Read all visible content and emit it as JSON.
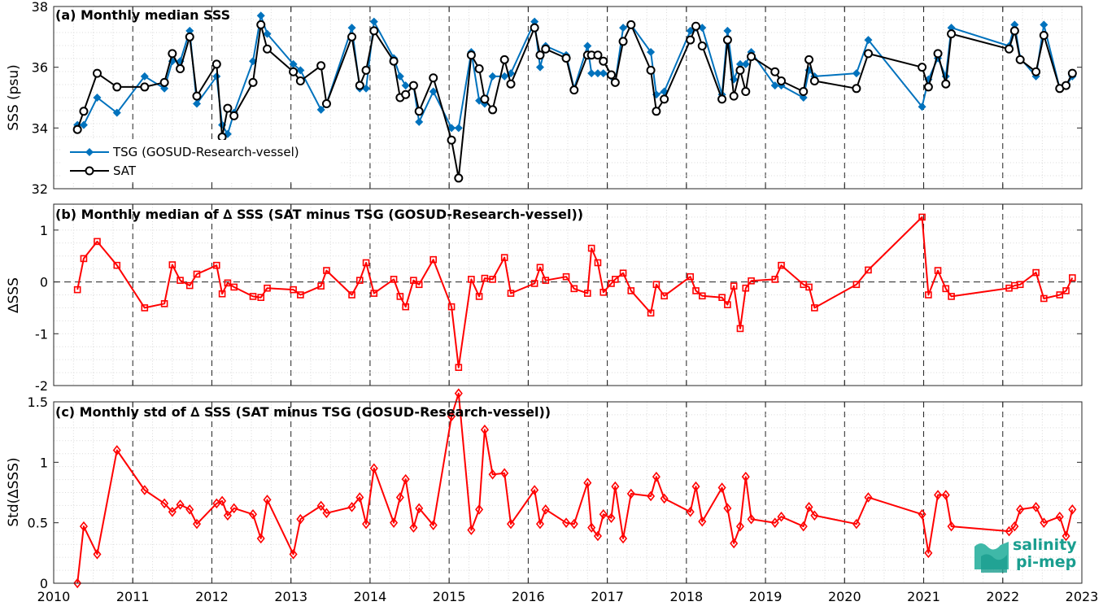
{
  "years": [
    "2010",
    "2011",
    "2012",
    "2013",
    "2014",
    "2015",
    "2016",
    "2017",
    "2018",
    "2019",
    "2020",
    "2021",
    "2022",
    "2023"
  ],
  "logo": {
    "line1": "salinity",
    "line2": "pi-mep",
    "color": "#1a9e8f"
  },
  "chart_data": [
    {
      "type": "line",
      "title": "(a) Monthly median SSS",
      "ylabel": "SSS (psu)",
      "xlim": [
        2010,
        2023
      ],
      "ylim": [
        32,
        38
      ],
      "yticks": [
        32,
        34,
        36,
        38
      ],
      "grid": true,
      "legend_position": "lower-left",
      "series": [
        {
          "name": "TSG (GOSUD-Research-vessel)",
          "color": "#0072BD",
          "marker": "diamond-filled",
          "x": [
            2010.3,
            2010.38,
            2010.55,
            2010.8,
            2011.15,
            2011.4,
            2011.5,
            2011.6,
            2011.72,
            2011.81,
            2012.06,
            2012.13,
            2012.2,
            2012.28,
            2012.52,
            2012.62,
            2012.7,
            2013.03,
            2013.12,
            2013.38,
            2013.45,
            2013.77,
            2013.87,
            2013.95,
            2014.05,
            2014.3,
            2014.38,
            2014.45,
            2014.55,
            2014.62,
            2014.8,
            2015.03,
            2015.12,
            2015.28,
            2015.38,
            2015.45,
            2015.55,
            2015.7,
            2015.78,
            2016.08,
            2016.15,
            2016.22,
            2016.48,
            2016.58,
            2016.75,
            2016.8,
            2016.88,
            2016.95,
            2017.05,
            2017.1,
            2017.2,
            2017.3,
            2017.55,
            2017.62,
            2017.72,
            2018.05,
            2018.12,
            2018.2,
            2018.45,
            2018.52,
            2018.6,
            2018.68,
            2018.75,
            2018.82,
            2019.12,
            2019.2,
            2019.48,
            2019.55,
            2019.62,
            2020.15,
            2020.3,
            2020.98,
            2021.06,
            2021.18,
            2021.28,
            2021.35,
            2022.08,
            2022.15,
            2022.22,
            2022.42,
            2022.52,
            2022.72,
            2022.8,
            2022.88
          ],
          "y": [
            34.1,
            34.1,
            35.0,
            34.5,
            35.7,
            35.3,
            36.2,
            36.2,
            37.2,
            34.8,
            35.7,
            34.1,
            33.8,
            34.5,
            36.2,
            37.7,
            37.1,
            36.1,
            35.9,
            34.6,
            34.8,
            37.3,
            35.3,
            35.3,
            37.5,
            36.3,
            35.7,
            35.4,
            35.4,
            34.2,
            35.2,
            34.0,
            34.0,
            36.5,
            34.9,
            34.8,
            35.7,
            35.7,
            35.8,
            37.5,
            36.0,
            36.7,
            36.4,
            35.3,
            36.7,
            35.8,
            35.8,
            35.8,
            35.7,
            35.5,
            37.3,
            37.4,
            36.5,
            35.1,
            35.2,
            37.2,
            37.3,
            37.3,
            35.1,
            37.2,
            35.6,
            36.1,
            36.1,
            36.5,
            35.4,
            35.4,
            35.0,
            35.9,
            35.7,
            35.8,
            36.9,
            34.7,
            35.6,
            36.3,
            35.7,
            37.3,
            36.7,
            37.4,
            36.3,
            35.7,
            37.4,
            35.3,
            35.4,
            35.7
          ]
        },
        {
          "name": "SAT",
          "color": "#000000",
          "marker": "circle-open",
          "x": [
            2010.3,
            2010.38,
            2010.55,
            2010.8,
            2011.15,
            2011.4,
            2011.5,
            2011.6,
            2011.72,
            2011.81,
            2012.06,
            2012.13,
            2012.2,
            2012.28,
            2012.52,
            2012.62,
            2012.7,
            2013.03,
            2013.12,
            2013.38,
            2013.45,
            2013.77,
            2013.87,
            2013.95,
            2014.05,
            2014.3,
            2014.38,
            2014.45,
            2014.55,
            2014.62,
            2014.8,
            2015.03,
            2015.12,
            2015.28,
            2015.38,
            2015.45,
            2015.55,
            2015.7,
            2015.78,
            2016.08,
            2016.15,
            2016.22,
            2016.48,
            2016.58,
            2016.75,
            2016.8,
            2016.88,
            2016.95,
            2017.05,
            2017.1,
            2017.2,
            2017.3,
            2017.55,
            2017.62,
            2017.72,
            2018.05,
            2018.12,
            2018.2,
            2018.45,
            2018.52,
            2018.6,
            2018.68,
            2018.75,
            2018.82,
            2019.12,
            2019.2,
            2019.48,
            2019.55,
            2019.62,
            2020.15,
            2020.3,
            2020.98,
            2021.06,
            2021.18,
            2021.28,
            2021.35,
            2022.08,
            2022.15,
            2022.22,
            2022.42,
            2022.52,
            2022.72,
            2022.8,
            2022.88
          ],
          "y": [
            33.95,
            34.55,
            35.8,
            35.35,
            35.35,
            35.5,
            36.45,
            35.95,
            37.0,
            35.05,
            36.1,
            33.7,
            34.65,
            34.4,
            35.5,
            37.4,
            36.6,
            35.85,
            35.55,
            36.05,
            34.8,
            37.0,
            35.4,
            35.9,
            37.2,
            36.2,
            35.0,
            35.1,
            35.4,
            34.55,
            35.65,
            33.6,
            32.35,
            36.4,
            35.95,
            34.95,
            34.6,
            36.25,
            35.45,
            37.3,
            36.4,
            36.6,
            36.3,
            35.25,
            36.4,
            36.4,
            36.4,
            36.2,
            35.75,
            35.5,
            36.85,
            37.4,
            35.9,
            34.55,
            34.95,
            36.9,
            37.35,
            36.7,
            34.95,
            36.9,
            35.05,
            35.9,
            35.2,
            36.35,
            35.85,
            35.55,
            35.2,
            36.25,
            35.55,
            35.3,
            36.45,
            36.0,
            35.35,
            36.45,
            35.45,
            37.1,
            36.6,
            37.2,
            36.25,
            35.85,
            37.05,
            35.3,
            35.4,
            35.8
          ]
        }
      ]
    },
    {
      "type": "line",
      "title": "(b) Monthly median of ∆ SSS (SAT minus TSG (GOSUD-Research-vessel))",
      "ylabel": "∆SSS",
      "xlim": [
        2010,
        2023
      ],
      "ylim": [
        -2,
        1.5
      ],
      "yticks": [
        -2,
        -1,
        0,
        1
      ],
      "grid": true,
      "zero_line": "dashed",
      "series": [
        {
          "name": "",
          "color": "#FF0000",
          "marker": "square-open",
          "x": [
            2010.3,
            2010.38,
            2010.55,
            2010.8,
            2011.15,
            2011.4,
            2011.5,
            2011.6,
            2011.72,
            2011.81,
            2012.06,
            2012.13,
            2012.2,
            2012.28,
            2012.52,
            2012.62,
            2012.7,
            2013.03,
            2013.12,
            2013.38,
            2013.45,
            2013.77,
            2013.87,
            2013.95,
            2014.05,
            2014.3,
            2014.38,
            2014.45,
            2014.55,
            2014.62,
            2014.8,
            2015.03,
            2015.12,
            2015.28,
            2015.38,
            2015.45,
            2015.55,
            2015.7,
            2015.78,
            2016.08,
            2016.15,
            2016.22,
            2016.48,
            2016.58,
            2016.75,
            2016.8,
            2016.88,
            2016.95,
            2017.05,
            2017.1,
            2017.2,
            2017.3,
            2017.55,
            2017.62,
            2017.72,
            2018.05,
            2018.12,
            2018.2,
            2018.45,
            2018.52,
            2018.6,
            2018.68,
            2018.75,
            2018.82,
            2019.12,
            2019.2,
            2019.48,
            2019.55,
            2019.62,
            2020.15,
            2020.3,
            2020.98,
            2021.06,
            2021.18,
            2021.28,
            2021.35,
            2022.08,
            2022.15,
            2022.22,
            2022.42,
            2022.52,
            2022.72,
            2022.8,
            2022.88
          ],
          "y": [
            -0.15,
            0.45,
            0.78,
            0.32,
            -0.5,
            -0.42,
            0.33,
            0.03,
            -0.07,
            0.15,
            0.32,
            -0.23,
            -0.02,
            -0.1,
            -0.28,
            -0.3,
            -0.12,
            -0.15,
            -0.25,
            -0.08,
            0.22,
            -0.25,
            0.03,
            0.37,
            -0.22,
            0.05,
            -0.28,
            -0.48,
            0.03,
            -0.05,
            0.43,
            -0.48,
            -1.65,
            0.05,
            -0.28,
            0.07,
            0.05,
            0.47,
            -0.22,
            -0.03,
            0.28,
            0.03,
            0.1,
            -0.13,
            -0.22,
            0.65,
            0.37,
            -0.2,
            -0.03,
            0.05,
            0.17,
            -0.17,
            -0.6,
            -0.05,
            -0.27,
            0.1,
            -0.17,
            -0.27,
            -0.3,
            -0.44,
            -0.08,
            -0.9,
            -0.12,
            0.02,
            0.05,
            0.32,
            -0.05,
            -0.1,
            -0.5,
            -0.05,
            0.23,
            1.25,
            -0.25,
            0.22,
            -0.13,
            -0.28,
            -0.12,
            -0.07,
            -0.05,
            0.18,
            -0.32,
            -0.25,
            -0.17,
            0.08
          ]
        }
      ]
    },
    {
      "type": "line",
      "title": "(c) Monthly std of ∆ SSS (SAT minus TSG (GOSUD-Research-vessel))",
      "ylabel": "Std(∆SSS)",
      "xlim": [
        2010,
        2023
      ],
      "ylim": [
        0,
        1.5
      ],
      "yticks": [
        0,
        0.5,
        1,
        1.5
      ],
      "grid": true,
      "series": [
        {
          "name": "",
          "color": "#FF0000",
          "marker": "diamond-open",
          "x": [
            2010.3,
            2010.38,
            2010.55,
            2010.8,
            2011.15,
            2011.4,
            2011.5,
            2011.6,
            2011.72,
            2011.81,
            2012.06,
            2012.13,
            2012.2,
            2012.28,
            2012.52,
            2012.62,
            2012.7,
            2013.03,
            2013.12,
            2013.38,
            2013.45,
            2013.77,
            2013.87,
            2013.95,
            2014.05,
            2014.3,
            2014.38,
            2014.45,
            2014.55,
            2014.62,
            2014.8,
            2015.03,
            2015.12,
            2015.28,
            2015.38,
            2015.45,
            2015.55,
            2015.7,
            2015.78,
            2016.08,
            2016.15,
            2016.22,
            2016.48,
            2016.58,
            2016.75,
            2016.8,
            2016.88,
            2016.95,
            2017.05,
            2017.1,
            2017.2,
            2017.3,
            2017.55,
            2017.62,
            2017.72,
            2018.05,
            2018.12,
            2018.2,
            2018.45,
            2018.52,
            2018.6,
            2018.68,
            2018.75,
            2018.82,
            2019.12,
            2019.2,
            2019.48,
            2019.55,
            2019.62,
            2020.15,
            2020.3,
            2020.98,
            2021.06,
            2021.18,
            2021.28,
            2021.35,
            2022.08,
            2022.15,
            2022.22,
            2022.42,
            2022.52,
            2022.72,
            2022.8,
            2022.88
          ],
          "y": [
            0.0,
            0.47,
            0.24,
            1.1,
            0.77,
            0.66,
            0.59,
            0.65,
            0.61,
            0.49,
            0.66,
            0.68,
            0.56,
            0.62,
            0.57,
            0.37,
            0.69,
            0.24,
            0.53,
            0.64,
            0.58,
            0.63,
            0.71,
            0.49,
            0.95,
            0.5,
            0.71,
            0.86,
            0.46,
            0.62,
            0.48,
            1.38,
            1.57,
            0.44,
            0.61,
            1.27,
            0.9,
            0.91,
            0.49,
            0.77,
            0.49,
            0.61,
            0.5,
            0.49,
            0.83,
            0.46,
            0.39,
            0.57,
            0.54,
            0.8,
            0.37,
            0.74,
            0.72,
            0.88,
            0.7,
            0.59,
            0.8,
            0.51,
            0.79,
            0.62,
            0.33,
            0.47,
            0.88,
            0.53,
            0.5,
            0.55,
            0.47,
            0.63,
            0.56,
            0.49,
            0.71,
            0.57,
            0.25,
            0.73,
            0.73,
            0.47,
            0.43,
            0.47,
            0.61,
            0.63,
            0.5,
            0.55,
            0.39,
            0.61
          ]
        }
      ]
    }
  ]
}
